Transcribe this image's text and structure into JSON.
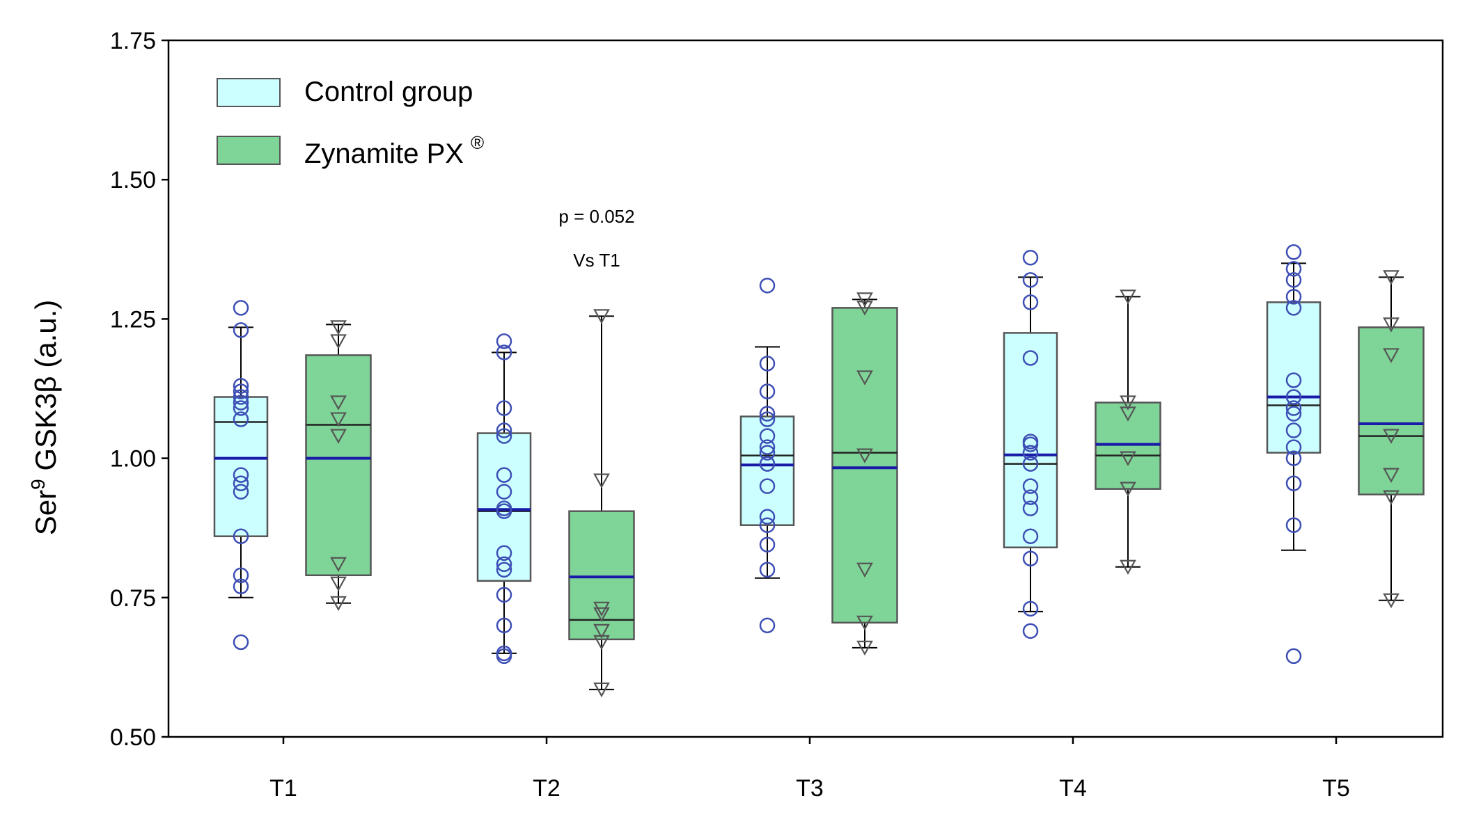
{
  "chart_data": {
    "type": "boxplot",
    "ylabel_base": "Ser",
    "ylabel_superscript": "9",
    "ylabel_rest": " GSK3β (a.u.)",
    "ylim": [
      0.5,
      1.75
    ],
    "yticks": [
      0.5,
      0.75,
      1.0,
      1.25,
      1.5,
      1.75
    ],
    "ytick_labels": [
      "0.50",
      "0.75",
      "1.00",
      "1.25",
      "1.50",
      "1.75"
    ],
    "categories": [
      "T1",
      "T2",
      "T3",
      "T4",
      "T5"
    ],
    "legend": [
      {
        "name": "Control group",
        "color": "#ccffff"
      },
      {
        "name": "Zynamite PX",
        "superscript": "®",
        "color": "#7fd498"
      }
    ],
    "annotations": [
      {
        "category": "T2",
        "lines": [
          "p = 0.052",
          "Vs T1"
        ]
      }
    ],
    "mean_color": "#1a1aa8",
    "series": [
      {
        "name": "Control group",
        "marker": "circle",
        "box_color": "#ccffff",
        "marker_color": "#3d4fb5",
        "boxes": [
          {
            "whisker_low": 0.75,
            "q1": 0.86,
            "median": 1.065,
            "q3": 1.11,
            "whisker_high": 1.235,
            "mean": 1.0,
            "points": [
              0.67,
              0.77,
              0.79,
              0.86,
              0.94,
              0.955,
              0.97,
              1.07,
              1.09,
              1.1,
              1.11,
              1.12,
              1.13,
              1.23,
              1.27
            ]
          },
          {
            "whisker_low": 0.65,
            "q1": 0.78,
            "median": 0.905,
            "q3": 1.045,
            "whisker_high": 1.19,
            "mean": 0.908,
            "points": [
              0.645,
              0.65,
              0.7,
              0.755,
              0.8,
              0.81,
              0.83,
              0.905,
              0.91,
              0.94,
              0.97,
              1.04,
              1.05,
              1.09,
              1.19,
              1.21
            ]
          },
          {
            "whisker_low": 0.785,
            "q1": 0.88,
            "median": 1.005,
            "q3": 1.075,
            "whisker_high": 1.2,
            "mean": 0.988,
            "points": [
              0.7,
              0.8,
              0.845,
              0.88,
              0.895,
              0.95,
              0.99,
              1.01,
              1.02,
              1.04,
              1.07,
              1.08,
              1.12,
              1.17,
              1.31
            ]
          },
          {
            "whisker_low": 0.725,
            "q1": 0.84,
            "median": 0.99,
            "q3": 1.225,
            "whisker_high": 1.325,
            "mean": 1.006,
            "points": [
              0.69,
              0.73,
              0.82,
              0.86,
              0.91,
              0.93,
              0.95,
              0.99,
              1.01,
              1.025,
              1.03,
              1.18,
              1.28,
              1.32,
              1.36
            ]
          },
          {
            "whisker_low": 0.835,
            "q1": 1.01,
            "median": 1.095,
            "q3": 1.28,
            "whisker_high": 1.35,
            "mean": 1.11,
            "points": [
              0.645,
              0.88,
              0.955,
              1.0,
              1.02,
              1.05,
              1.08,
              1.09,
              1.11,
              1.14,
              1.27,
              1.29,
              1.32,
              1.34,
              1.37
            ]
          }
        ]
      },
      {
        "name": "Zynamite PX",
        "marker": "triangle-down",
        "box_color": "#7fd498",
        "marker_color": "#555555",
        "boxes": [
          {
            "whisker_low": 0.74,
            "q1": 0.79,
            "median": 1.06,
            "q3": 1.185,
            "whisker_high": 1.24,
            "mean": 1.0,
            "points": [
              0.74,
              0.775,
              0.81,
              1.04,
              1.07,
              1.1,
              1.21,
              1.235
            ]
          },
          {
            "whisker_low": 0.585,
            "q1": 0.675,
            "median": 0.71,
            "q3": 0.905,
            "whisker_high": 1.255,
            "mean": 0.787,
            "points": [
              0.585,
              0.67,
              0.69,
              0.72,
              0.73,
              0.96,
              1.255
            ]
          },
          {
            "whisker_low": 0.66,
            "q1": 0.705,
            "median": 1.01,
            "q3": 1.27,
            "whisker_high": 1.285,
            "mean": 0.983,
            "points": [
              0.66,
              0.705,
              0.8,
              1.005,
              1.145,
              1.27,
              1.285
            ]
          },
          {
            "whisker_low": 0.805,
            "q1": 0.945,
            "median": 1.005,
            "q3": 1.1,
            "whisker_high": 1.29,
            "mean": 1.025,
            "points": [
              0.805,
              0.945,
              1.0,
              1.08,
              1.1,
              1.29
            ]
          },
          {
            "whisker_low": 0.745,
            "q1": 0.935,
            "median": 1.04,
            "q3": 1.235,
            "whisker_high": 1.325,
            "mean": 1.062,
            "points": [
              0.745,
              0.93,
              0.97,
              1.04,
              1.185,
              1.24,
              1.325
            ]
          }
        ]
      }
    ]
  }
}
